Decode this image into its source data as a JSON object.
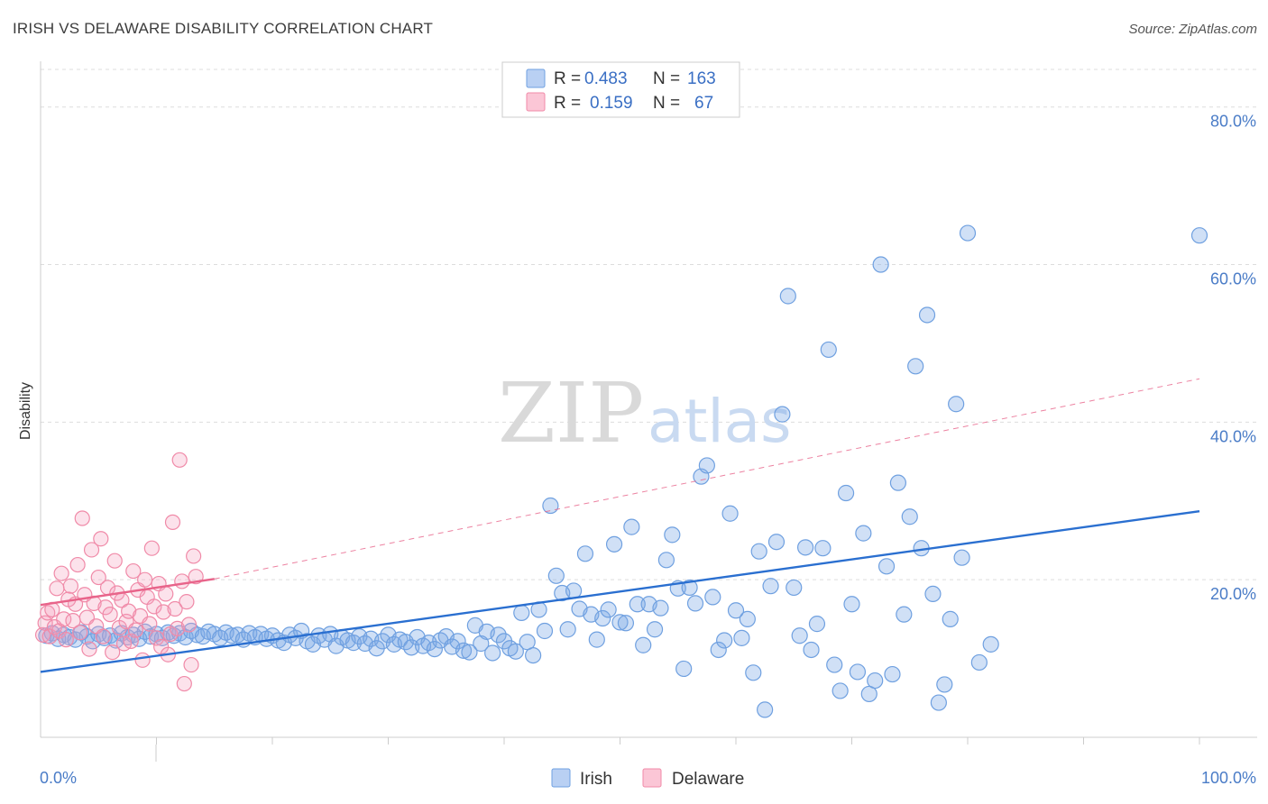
{
  "header": {
    "title": "IRISH VS DELAWARE DISABILITY CORRELATION CHART",
    "source": "Source: ZipAtlas.com"
  },
  "watermark": {
    "part1": "ZIP",
    "part2": "atlas"
  },
  "legend": {
    "rows": [
      {
        "r_label": "R =",
        "r_value": "0.483",
        "n_label": "N =",
        "n_value": "163",
        "color": "#6fa0e0"
      },
      {
        "r_label": "R =",
        "r_value": "0.159",
        "n_label": "N =",
        "n_value": "67",
        "color": "#f08aa8"
      }
    ]
  },
  "chart_data": {
    "type": "scatter",
    "title": "IRISH VS DELAWARE DISABILITY CORRELATION CHART",
    "xlabel": "",
    "ylabel": "Disability",
    "xlim": [
      0,
      100
    ],
    "ylim": [
      0,
      85
    ],
    "x_tick_labels": [
      "0.0%",
      "100.0%"
    ],
    "y_ticks": [
      {
        "value": 20,
        "label": "20.0%"
      },
      {
        "value": 40,
        "label": "40.0%"
      },
      {
        "value": 60,
        "label": "60.0%"
      },
      {
        "value": 80,
        "label": "80.0%"
      }
    ],
    "grid": true,
    "legend_position": "top-center",
    "colors": {
      "irish": "#6fa0e0",
      "irish_line": "#2a6fd0",
      "delaware": "#f08aa8",
      "delaware_line": "#e8648a"
    },
    "series": [
      {
        "name": "Irish",
        "points": [
          [
            0.5,
            12.9
          ],
          [
            1.0,
            13.2
          ],
          [
            1.5,
            12.5
          ],
          [
            2.0,
            13.0
          ],
          [
            2.5,
            12.7
          ],
          [
            3.0,
            12.4
          ],
          [
            3.5,
            13.3
          ],
          [
            4.0,
            12.8
          ],
          [
            4.5,
            12.2
          ],
          [
            5.0,
            13.1
          ],
          [
            5.5,
            12.6
          ],
          [
            6.0,
            12.9
          ],
          [
            6.5,
            12.3
          ],
          [
            7.0,
            13.2
          ],
          [
            7.5,
            12.7
          ],
          [
            8.0,
            13.0
          ],
          [
            8.5,
            12.5
          ],
          [
            9.0,
            13.4
          ],
          [
            9.5,
            12.8
          ],
          [
            10.0,
            13.1
          ],
          [
            10.5,
            12.6
          ],
          [
            11.0,
            13.3
          ],
          [
            11.5,
            12.9
          ],
          [
            12.0,
            13.2
          ],
          [
            12.5,
            12.7
          ],
          [
            13.0,
            13.5
          ],
          [
            13.5,
            13.0
          ],
          [
            14.0,
            12.8
          ],
          [
            14.5,
            13.4
          ],
          [
            15.0,
            13.1
          ],
          [
            15.5,
            12.6
          ],
          [
            16.0,
            13.3
          ],
          [
            16.5,
            12.9
          ],
          [
            17.0,
            13.0
          ],
          [
            17.5,
            12.4
          ],
          [
            18.0,
            13.2
          ],
          [
            18.5,
            12.7
          ],
          [
            19.0,
            13.1
          ],
          [
            19.5,
            12.5
          ],
          [
            20.0,
            12.9
          ],
          [
            20.5,
            12.3
          ],
          [
            21.0,
            12.0
          ],
          [
            21.5,
            13.0
          ],
          [
            22.0,
            12.6
          ],
          [
            22.5,
            13.5
          ],
          [
            23.0,
            12.2
          ],
          [
            23.5,
            11.8
          ],
          [
            24.0,
            12.9
          ],
          [
            24.5,
            12.4
          ],
          [
            25.0,
            13.1
          ],
          [
            25.5,
            11.6
          ],
          [
            26.0,
            12.7
          ],
          [
            26.5,
            12.3
          ],
          [
            27.0,
            12.0
          ],
          [
            27.5,
            12.8
          ],
          [
            28.0,
            11.9
          ],
          [
            28.5,
            12.5
          ],
          [
            29.0,
            11.3
          ],
          [
            29.5,
            12.2
          ],
          [
            30.0,
            13.0
          ],
          [
            30.5,
            11.8
          ],
          [
            31.0,
            12.4
          ],
          [
            31.5,
            12.1
          ],
          [
            32.0,
            11.4
          ],
          [
            32.5,
            12.7
          ],
          [
            33.0,
            11.6
          ],
          [
            33.5,
            12.0
          ],
          [
            34.0,
            11.2
          ],
          [
            34.5,
            12.3
          ],
          [
            35.0,
            12.8
          ],
          [
            35.5,
            11.5
          ],
          [
            36.0,
            12.2
          ],
          [
            36.5,
            11.0
          ],
          [
            37.0,
            10.8
          ],
          [
            37.5,
            14.2
          ],
          [
            38.0,
            11.9
          ],
          [
            38.5,
            13.4
          ],
          [
            39.0,
            10.7
          ],
          [
            39.5,
            13.0
          ],
          [
            40.0,
            12.2
          ],
          [
            40.5,
            11.3
          ],
          [
            41.0,
            10.9
          ],
          [
            41.5,
            15.8
          ],
          [
            42.0,
            12.1
          ],
          [
            42.5,
            10.4
          ],
          [
            43.0,
            16.2
          ],
          [
            43.5,
            13.5
          ],
          [
            44.0,
            29.4
          ],
          [
            44.5,
            20.5
          ],
          [
            45.0,
            18.3
          ],
          [
            45.5,
            13.7
          ],
          [
            46.0,
            18.6
          ],
          [
            46.5,
            16.3
          ],
          [
            47.0,
            23.3
          ],
          [
            47.5,
            15.6
          ],
          [
            48.0,
            12.4
          ],
          [
            48.5,
            15.1
          ],
          [
            49.0,
            16.2
          ],
          [
            49.5,
            24.5
          ],
          [
            50.0,
            14.6
          ],
          [
            50.5,
            14.5
          ],
          [
            51.0,
            26.7
          ],
          [
            51.5,
            16.9
          ],
          [
            52.0,
            11.7
          ],
          [
            52.5,
            16.9
          ],
          [
            53.0,
            13.7
          ],
          [
            53.5,
            16.4
          ],
          [
            54.0,
            22.5
          ],
          [
            54.5,
            25.7
          ],
          [
            55.0,
            18.9
          ],
          [
            55.5,
            8.7
          ],
          [
            56.0,
            19.0
          ],
          [
            56.5,
            17.0
          ],
          [
            57.0,
            33.1
          ],
          [
            57.5,
            34.5
          ],
          [
            58.0,
            17.8
          ],
          [
            58.5,
            11.1
          ],
          [
            59.0,
            12.3
          ],
          [
            59.5,
            28.4
          ],
          [
            60.0,
            16.1
          ],
          [
            60.5,
            12.6
          ],
          [
            61.0,
            15.0
          ],
          [
            61.5,
            8.2
          ],
          [
            62.0,
            23.6
          ],
          [
            62.5,
            3.5
          ],
          [
            63.0,
            19.2
          ],
          [
            63.5,
            24.8
          ],
          [
            64.0,
            41.0
          ],
          [
            64.5,
            56.0
          ],
          [
            65.0,
            19.0
          ],
          [
            65.5,
            12.9
          ],
          [
            66.0,
            24.1
          ],
          [
            66.5,
            11.1
          ],
          [
            67.0,
            14.4
          ],
          [
            67.5,
            24.0
          ],
          [
            68.0,
            49.2
          ],
          [
            68.5,
            9.2
          ],
          [
            69.0,
            5.9
          ],
          [
            69.5,
            31.0
          ],
          [
            70.0,
            16.9
          ],
          [
            70.5,
            8.3
          ],
          [
            71.0,
            25.9
          ],
          [
            71.5,
            5.5
          ],
          [
            72.0,
            7.2
          ],
          [
            72.5,
            60.0
          ],
          [
            73.0,
            21.7
          ],
          [
            73.5,
            8.0
          ],
          [
            74.0,
            32.3
          ],
          [
            74.5,
            15.6
          ],
          [
            75.0,
            28.0
          ],
          [
            75.5,
            47.1
          ],
          [
            76.0,
            24.0
          ],
          [
            76.5,
            53.6
          ],
          [
            77.0,
            18.2
          ],
          [
            77.5,
            4.4
          ],
          [
            78.0,
            6.7
          ],
          [
            78.5,
            15.0
          ],
          [
            79.0,
            42.3
          ],
          [
            79.5,
            22.8
          ],
          [
            80.0,
            64.0
          ],
          [
            81.0,
            9.5
          ],
          [
            82.0,
            11.8
          ],
          [
            100.0,
            63.7
          ]
        ],
        "trend": {
          "x0": 0,
          "y0": 8.3,
          "x1": 100,
          "y1": 28.7
        }
      },
      {
        "name": "Delaware",
        "points": [
          [
            0.2,
            13.0
          ],
          [
            0.4,
            14.5
          ],
          [
            0.6,
            15.8
          ],
          [
            0.8,
            12.8
          ],
          [
            1.0,
            16.2
          ],
          [
            1.2,
            14.0
          ],
          [
            1.4,
            18.9
          ],
          [
            1.6,
            13.5
          ],
          [
            1.8,
            20.8
          ],
          [
            2.0,
            15.0
          ],
          [
            2.2,
            12.4
          ],
          [
            2.4,
            17.5
          ],
          [
            2.6,
            19.2
          ],
          [
            2.8,
            14.8
          ],
          [
            3.0,
            16.9
          ],
          [
            3.2,
            21.9
          ],
          [
            3.4,
            13.3
          ],
          [
            3.6,
            27.8
          ],
          [
            3.8,
            18.1
          ],
          [
            4.0,
            15.2
          ],
          [
            4.2,
            11.2
          ],
          [
            4.4,
            23.8
          ],
          [
            4.6,
            17.0
          ],
          [
            4.8,
            14.1
          ],
          [
            5.0,
            20.3
          ],
          [
            5.2,
            25.2
          ],
          [
            5.4,
            12.8
          ],
          [
            5.6,
            16.5
          ],
          [
            5.8,
            19.0
          ],
          [
            6.0,
            15.6
          ],
          [
            6.2,
            10.8
          ],
          [
            6.4,
            22.4
          ],
          [
            6.6,
            18.3
          ],
          [
            6.8,
            13.9
          ],
          [
            7.0,
            17.4
          ],
          [
            7.2,
            11.9
          ],
          [
            7.4,
            14.7
          ],
          [
            7.6,
            16.0
          ],
          [
            7.8,
            12.2
          ],
          [
            8.0,
            21.1
          ],
          [
            8.2,
            13.6
          ],
          [
            8.4,
            18.7
          ],
          [
            8.6,
            15.4
          ],
          [
            8.8,
            9.8
          ],
          [
            9.0,
            20.0
          ],
          [
            9.2,
            17.8
          ],
          [
            9.4,
            14.4
          ],
          [
            9.6,
            24.0
          ],
          [
            9.8,
            16.6
          ],
          [
            10.0,
            12.6
          ],
          [
            10.2,
            19.5
          ],
          [
            10.4,
            11.5
          ],
          [
            10.6,
            15.9
          ],
          [
            10.8,
            18.2
          ],
          [
            11.0,
            10.5
          ],
          [
            11.2,
            13.1
          ],
          [
            11.4,
            27.3
          ],
          [
            11.6,
            16.3
          ],
          [
            11.8,
            13.8
          ],
          [
            12.0,
            35.2
          ],
          [
            12.2,
            19.8
          ],
          [
            12.4,
            6.8
          ],
          [
            12.6,
            17.2
          ],
          [
            12.8,
            14.3
          ],
          [
            13.0,
            9.2
          ],
          [
            13.2,
            23.0
          ],
          [
            13.4,
            20.4
          ]
        ],
        "trend": {
          "x0": 0,
          "y0": 16.8,
          "x1": 15,
          "y1": 20.1
        },
        "trend_extension": {
          "x0": 15,
          "y0": 20.1,
          "x1": 100,
          "y1": 45.5
        }
      }
    ]
  }
}
